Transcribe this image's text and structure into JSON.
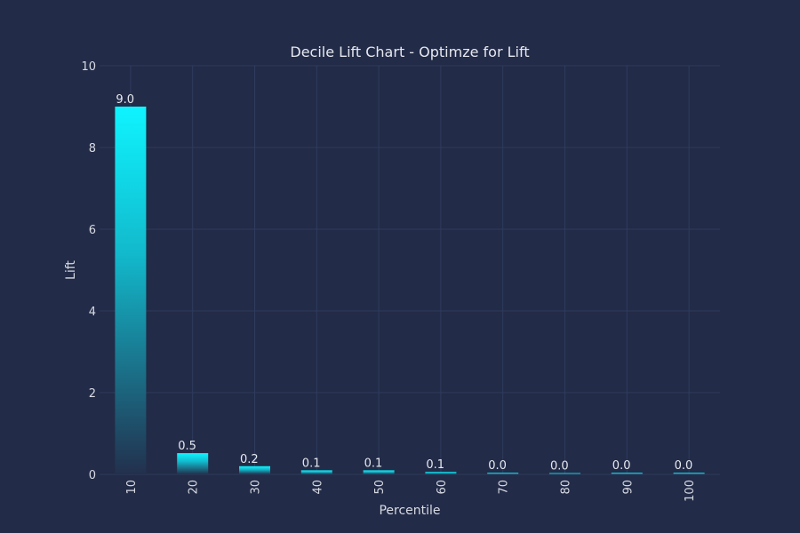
{
  "chart_data": {
    "type": "bar",
    "title": "Decile Lift Chart - Optimze for Lift",
    "xlabel": "Percentile",
    "ylabel": "Lift",
    "categories": [
      "10",
      "20",
      "30",
      "40",
      "50",
      "60",
      "70",
      "80",
      "90",
      "100"
    ],
    "values": [
      9.0,
      0.52,
      0.2,
      0.1,
      0.1,
      0.06,
      0.04,
      0.0,
      0.04,
      0.04
    ],
    "data_labels": [
      "9.0",
      "0.5",
      "0.2",
      "0.1",
      "0.1",
      "0.1",
      "0.0",
      "0.0",
      "0.0",
      "0.0"
    ],
    "ylim": [
      0,
      10
    ],
    "yticks": [
      "0",
      "2",
      "4",
      "6",
      "8",
      "10"
    ],
    "grid": true,
    "colors": {
      "background": "#222b47",
      "bar_top": "#0ff4ff",
      "bar_bottom": "#22304d",
      "grid": "#2f3b5e",
      "text": "#e6e8ef"
    }
  }
}
